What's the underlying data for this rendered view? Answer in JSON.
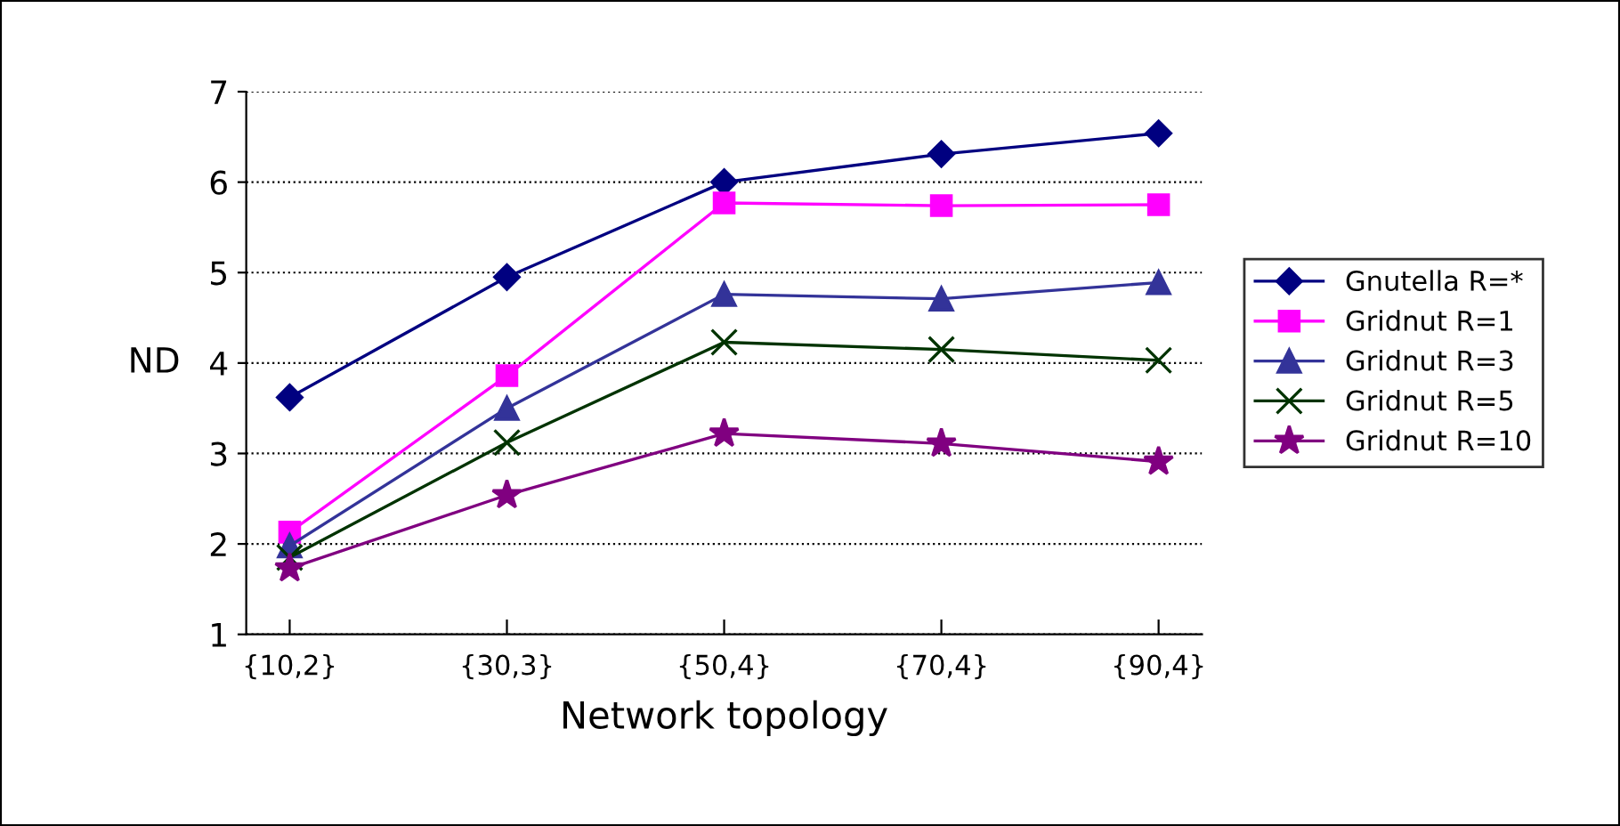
{
  "chart_data": {
    "type": "line",
    "xlabel": "Network topology",
    "ylabel": "ND",
    "categories": [
      "{10,2}",
      "{30,3}",
      "{50,4}",
      "{70,4}",
      "{90,4}"
    ],
    "series": [
      {
        "name": "Gnutella R=*",
        "color": "#000080",
        "marker": "diamond",
        "values": [
          3.62,
          4.95,
          6.0,
          6.31,
          6.54
        ]
      },
      {
        "name": "Gridnut R=1",
        "color": "#ff00ff",
        "marker": "square",
        "values": [
          2.13,
          3.86,
          5.77,
          5.74,
          5.75
        ]
      },
      {
        "name": "Gridnut R=3",
        "color": "#333399",
        "marker": "triangle",
        "values": [
          1.98,
          3.5,
          4.76,
          4.71,
          4.89
        ]
      },
      {
        "name": "Gridnut R=5",
        "color": "#003300",
        "marker": "cross",
        "values": [
          1.85,
          3.12,
          4.23,
          4.15,
          4.03
        ]
      },
      {
        "name": "Gridnut R=10",
        "color": "#800080",
        "marker": "star",
        "values": [
          1.73,
          2.54,
          3.22,
          3.11,
          2.91
        ]
      }
    ],
    "ylim": [
      1,
      7
    ],
    "yticks": [
      1,
      2,
      3,
      4,
      5,
      6,
      7
    ],
    "grid": "y",
    "legend": "right",
    "line_style": "solid"
  }
}
